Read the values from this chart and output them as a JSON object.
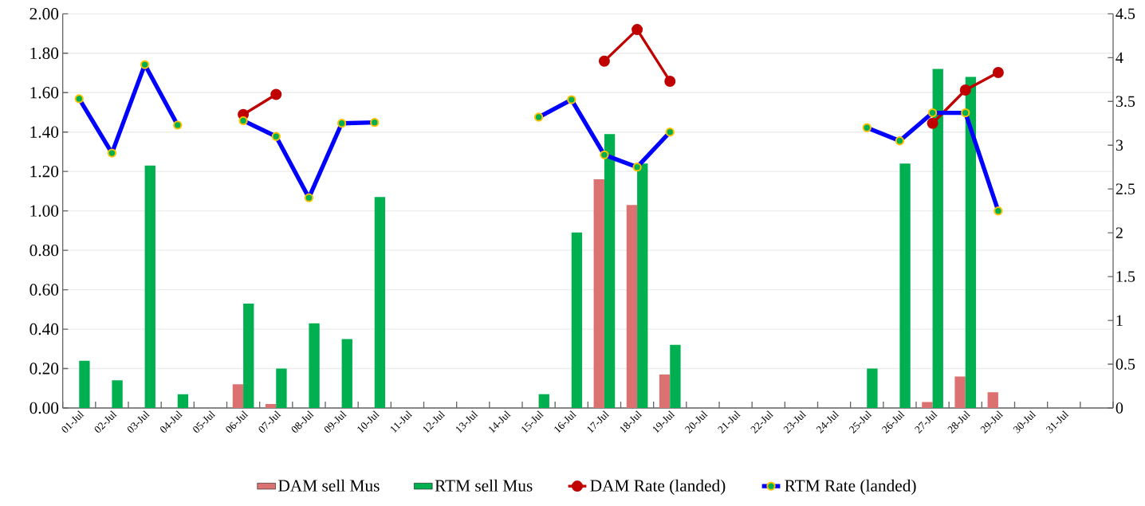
{
  "chart_data": {
    "type": "bar",
    "categories": [
      "01-Jul",
      "02-Jul",
      "03-Jul",
      "04-Jul",
      "05-Jul",
      "06-Jul",
      "07-Jul",
      "08-Jul",
      "09-Jul",
      "10-Jul",
      "11-Jul",
      "12-Jul",
      "13-Jul",
      "14-Jul",
      "15-Jul",
      "16-Jul",
      "17-Jul",
      "18-Jul",
      "19-Jul",
      "20-Jul",
      "21-Jul",
      "22-Jul",
      "23-Jul",
      "24-Jul",
      "25-Jul",
      "26-Jul",
      "27-Jul",
      "28-Jul",
      "29-Jul",
      "30-Jul",
      "31-Jul"
    ],
    "series": [
      {
        "name": "DAM sell Mus",
        "color": "#dc7171",
        "values": [
          null,
          null,
          null,
          null,
          null,
          0.12,
          0.02,
          null,
          null,
          null,
          null,
          null,
          null,
          null,
          null,
          null,
          1.16,
          1.03,
          0.17,
          null,
          null,
          null,
          null,
          null,
          null,
          null,
          0.03,
          0.16,
          0.08,
          null,
          null
        ]
      },
      {
        "name": "RTM sell Mus",
        "color": "#00b050",
        "values": [
          0.24,
          0.14,
          1.23,
          0.07,
          null,
          0.53,
          0.2,
          0.43,
          0.35,
          1.07,
          null,
          null,
          null,
          null,
          0.07,
          0.89,
          1.39,
          1.24,
          0.32,
          null,
          null,
          null,
          null,
          null,
          0.2,
          1.24,
          1.72,
          1.68,
          null,
          null,
          null
        ]
      },
      {
        "name": "DAM Rate (landed)",
        "type": "line",
        "axis": "y2",
        "color": "#c00000",
        "values": [
          null,
          null,
          null,
          null,
          null,
          3.35,
          3.58,
          null,
          null,
          null,
          null,
          null,
          null,
          null,
          null,
          null,
          3.96,
          4.32,
          3.73,
          null,
          null,
          null,
          null,
          null,
          null,
          null,
          3.25,
          3.63,
          3.83,
          null,
          null
        ]
      },
      {
        "name": "RTM Rate (landed)",
        "type": "line",
        "axis": "y2",
        "color": "#0000ff",
        "values": [
          3.53,
          2.91,
          3.92,
          3.23,
          null,
          3.28,
          3.1,
          2.4,
          3.25,
          3.26,
          null,
          null,
          null,
          null,
          3.32,
          3.52,
          2.89,
          2.75,
          3.15,
          null,
          null,
          null,
          null,
          null,
          3.2,
          3.05,
          3.37,
          3.37,
          2.25,
          null,
          null
        ]
      }
    ],
    "ylim": [
      0,
      2
    ],
    "yticks": [
      {
        "value": 0,
        "label": "0.00"
      },
      {
        "value": 0.2,
        "label": "0.20"
      },
      {
        "value": 0.4,
        "label": "0.40"
      },
      {
        "value": 0.6,
        "label": "0.60"
      },
      {
        "value": 0.8,
        "label": "0.80"
      },
      {
        "value": 1,
        "label": "1.00"
      },
      {
        "value": 1.2,
        "label": "1.20"
      },
      {
        "value": 1.4,
        "label": "1.40"
      },
      {
        "value": 1.6,
        "label": "1.60"
      },
      {
        "value": 1.8,
        "label": "1.80"
      },
      {
        "value": 2,
        "label": "2.00"
      }
    ],
    "y2lim": [
      0,
      4.5
    ],
    "y2ticks": [
      0,
      0.5,
      1,
      1.5,
      2,
      2.5,
      3,
      3.5,
      4,
      4.5
    ],
    "grid": "y",
    "legend": "bottom",
    "marker": "circle",
    "line_style": "solid"
  }
}
